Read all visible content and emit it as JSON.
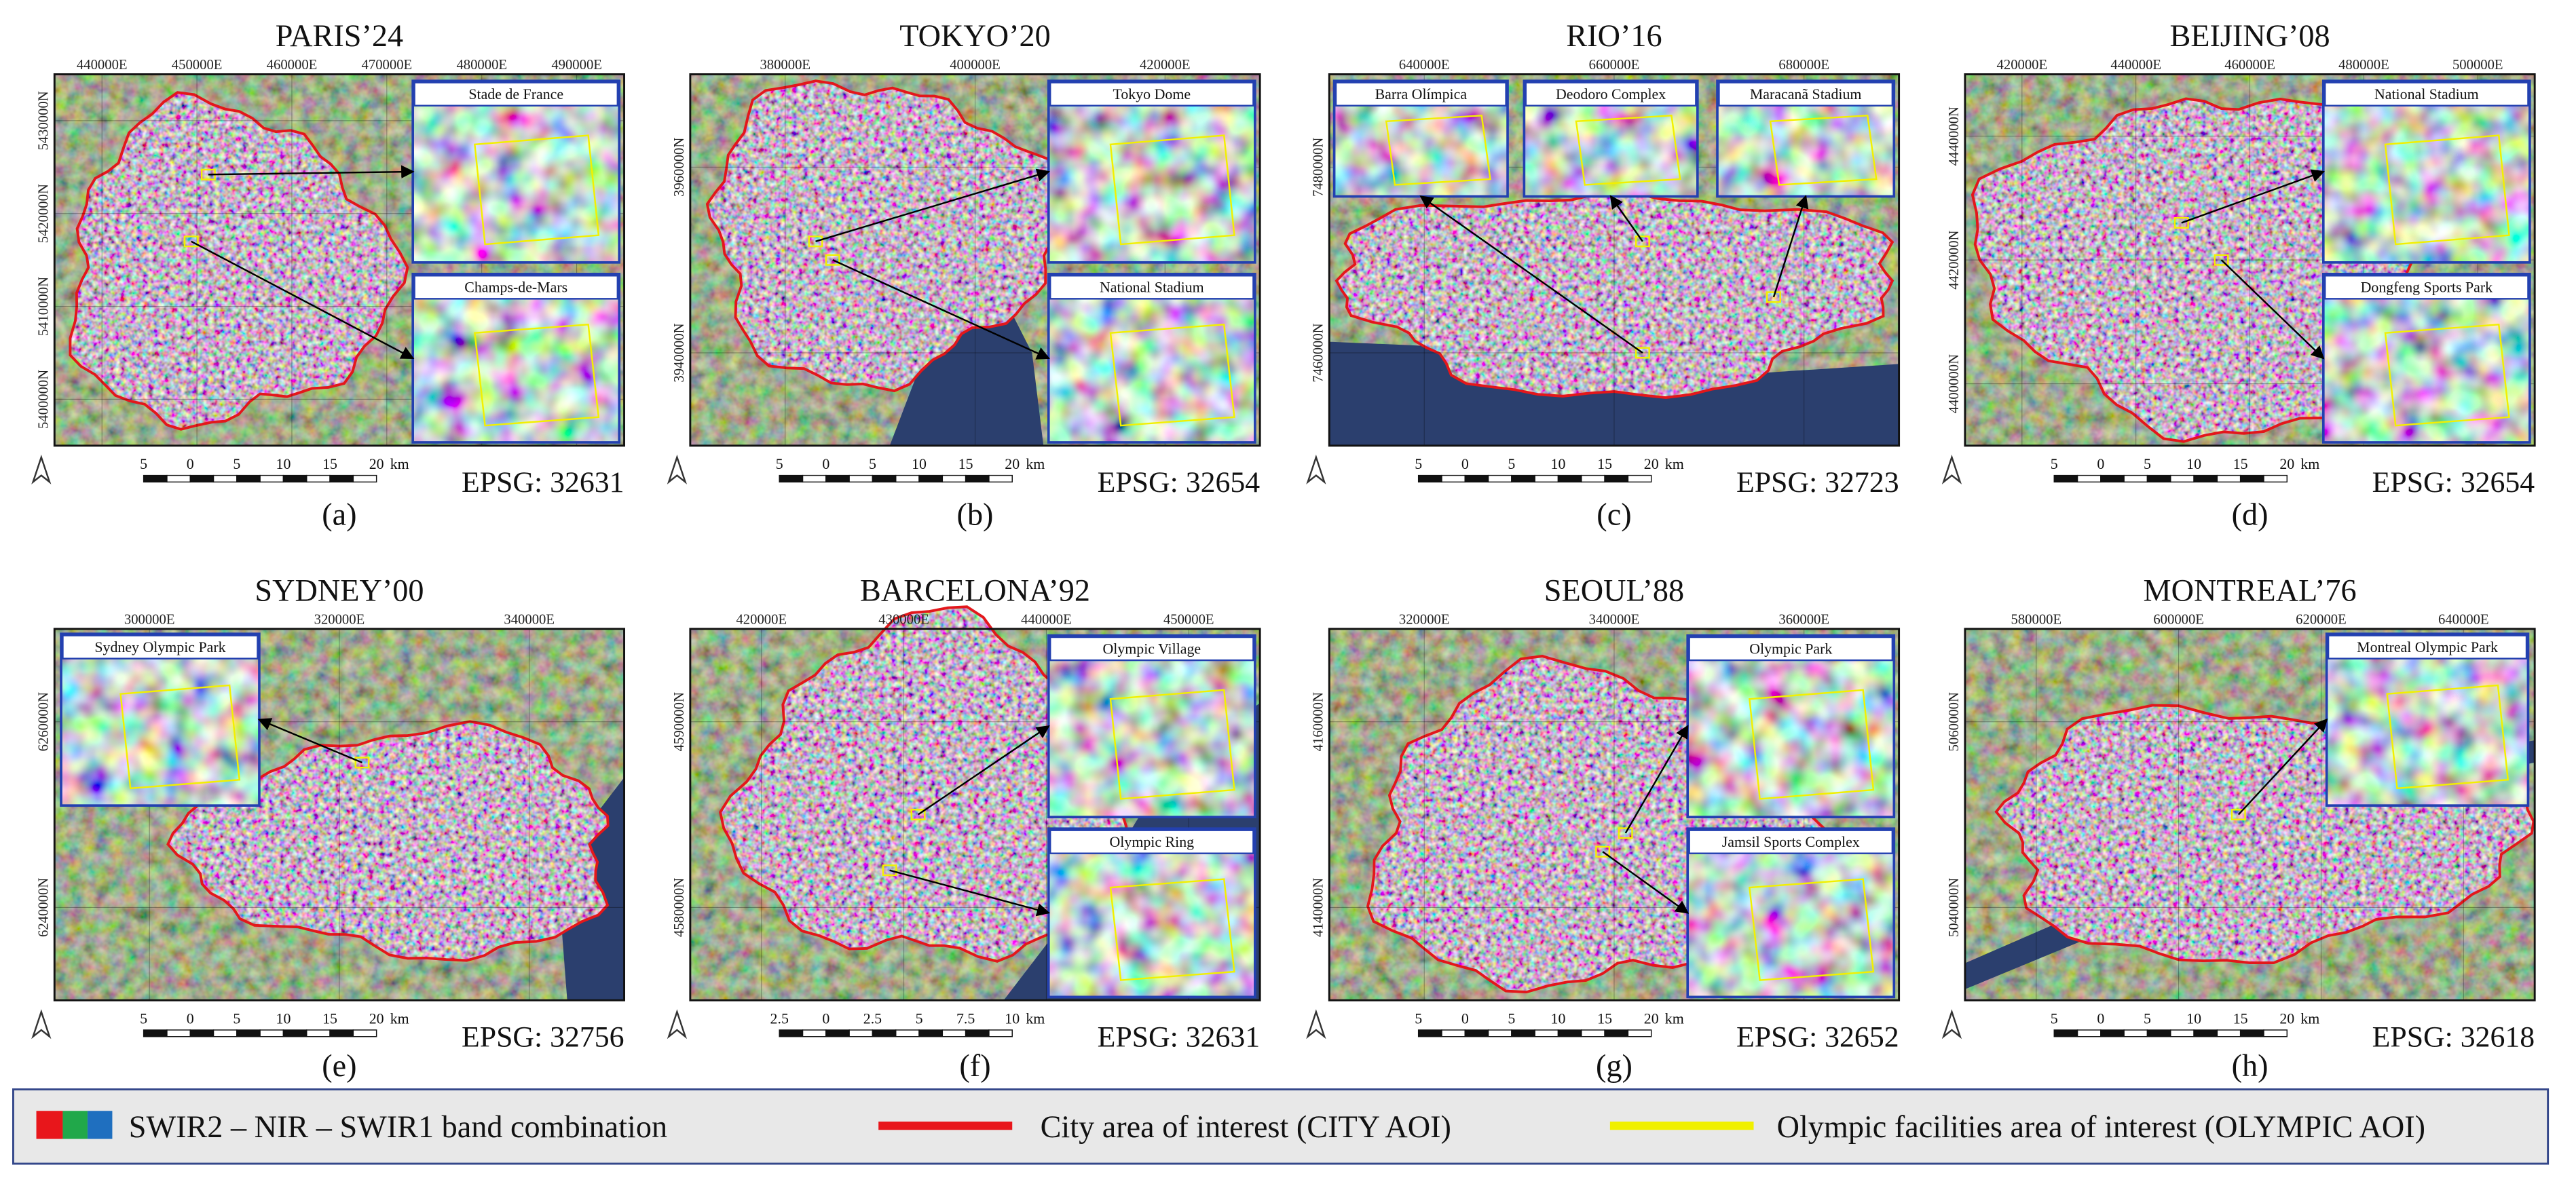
{
  "panels": [
    {
      "title": "PARIS’24",
      "caption": "(a)",
      "epsg": "EPSG: 32631",
      "easting": [
        "440000E",
        "450000E",
        "460000E",
        "470000E",
        "480000E",
        "490000E"
      ],
      "northing": [
        "5430000N",
        "5420000N",
        "5410000N",
        "5400000N"
      ],
      "insets": [
        "Stade de France",
        "Champs-de-Mars"
      ],
      "scale": [
        "5",
        "0",
        "5",
        "10",
        "15",
        "20",
        "km"
      ]
    },
    {
      "title": "TOKYO’20",
      "caption": "(b)",
      "epsg": "EPSG: 32654",
      "easting": [
        "380000E",
        "400000E",
        "420000E"
      ],
      "northing": [
        "3960000N",
        "3940000N"
      ],
      "insets": [
        "Tokyo Dome",
        "National Stadium"
      ],
      "scale": [
        "5",
        "0",
        "5",
        "10",
        "15",
        "20",
        "km"
      ]
    },
    {
      "title": "RIO’16",
      "caption": "(c)",
      "epsg": "EPSG: 32723",
      "easting": [
        "640000E",
        "660000E",
        "680000E"
      ],
      "northing": [
        "7480000N",
        "7460000N"
      ],
      "insets": [
        "Barra Olímpica",
        "Deodoro Complex",
        "Maracanã Stadium"
      ],
      "scale": [
        "5",
        "0",
        "5",
        "10",
        "15",
        "20",
        "km"
      ]
    },
    {
      "title": "BEIJING’08",
      "caption": "(d)",
      "epsg": "EPSG: 32654",
      "easting": [
        "420000E",
        "440000E",
        "460000E",
        "480000E",
        "500000E"
      ],
      "northing": [
        "4440000N",
        "4420000N",
        "4400000N"
      ],
      "insets": [
        "National Stadium",
        "Dongfeng Sports Park"
      ],
      "scale": [
        "5",
        "0",
        "5",
        "10",
        "15",
        "20",
        "km"
      ]
    },
    {
      "title": "SYDNEY’00",
      "caption": "(e)",
      "epsg": "EPSG: 32756",
      "easting": [
        "300000E",
        "320000E",
        "340000E"
      ],
      "northing": [
        "6260000N",
        "6240000N"
      ],
      "insets": [
        "Sydney Olympic Park"
      ],
      "scale": [
        "5",
        "0",
        "5",
        "10",
        "15",
        "20",
        "km"
      ]
    },
    {
      "title": "BARCELONA’92",
      "caption": "(f)",
      "epsg": "EPSG: 32631",
      "easting": [
        "420000E",
        "430000E",
        "440000E",
        "450000E"
      ],
      "northing": [
        "4590000N",
        "4580000N"
      ],
      "insets": [
        "Olympic Village",
        "Olympic Ring"
      ],
      "scale": [
        "2.5",
        "0",
        "2.5",
        "5",
        "7.5",
        "10",
        "km"
      ]
    },
    {
      "title": "SEOUL’88",
      "caption": "(g)",
      "epsg": "EPSG: 32652",
      "easting": [
        "320000E",
        "340000E",
        "360000E"
      ],
      "northing": [
        "4160000N",
        "4140000N"
      ],
      "insets": [
        "Olympic Park",
        "Jamsil Sports Complex"
      ],
      "scale": [
        "5",
        "0",
        "5",
        "10",
        "15",
        "20",
        "km"
      ]
    },
    {
      "title": "MONTREAL’76",
      "caption": "(h)",
      "epsg": "EPSG: 32618",
      "easting": [
        "580000E",
        "600000E",
        "620000E",
        "640000E"
      ],
      "northing": [
        "5060000N",
        "5040000N"
      ],
      "insets": [
        "Montreal Olympic Park"
      ],
      "scale": [
        "5",
        "0",
        "5",
        "10",
        "15",
        "20",
        "km"
      ]
    }
  ],
  "legend": {
    "band": "SWIR2 – NIR – SWIR1 band combination",
    "city": "City area of interest (CITY AOI)",
    "olympic": "Olympic facilities area of interest (OLYMPIC AOI)"
  }
}
